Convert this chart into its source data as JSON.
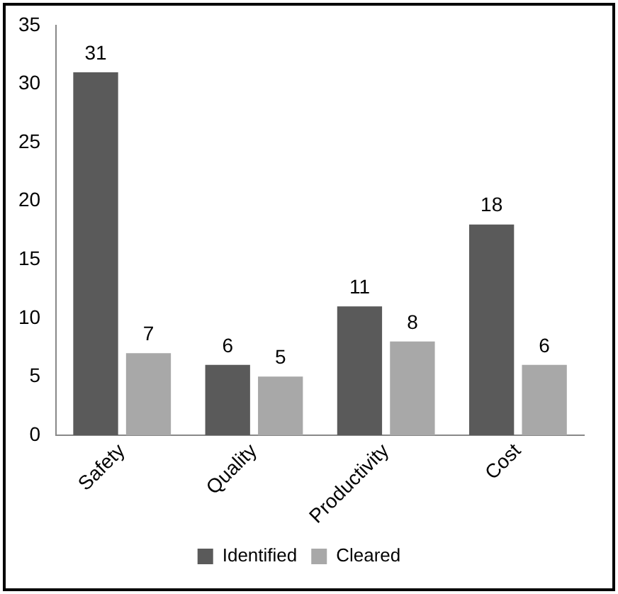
{
  "chart_data": {
    "type": "bar",
    "categories": [
      "Safety",
      "Quality",
      "Productivity",
      "Cost"
    ],
    "series": [
      {
        "name": "Identified",
        "color": "#5a5a5a",
        "values": [
          31,
          6,
          11,
          18
        ]
      },
      {
        "name": "Cleared",
        "color": "#a8a8a8",
        "values": [
          7,
          5,
          8,
          6
        ]
      }
    ],
    "ylim": [
      0,
      35
    ],
    "yticks": [
      0,
      5,
      10,
      15,
      20,
      25,
      30,
      35
    ],
    "grid": false,
    "legend": "bottom",
    "data_labels": true
  }
}
